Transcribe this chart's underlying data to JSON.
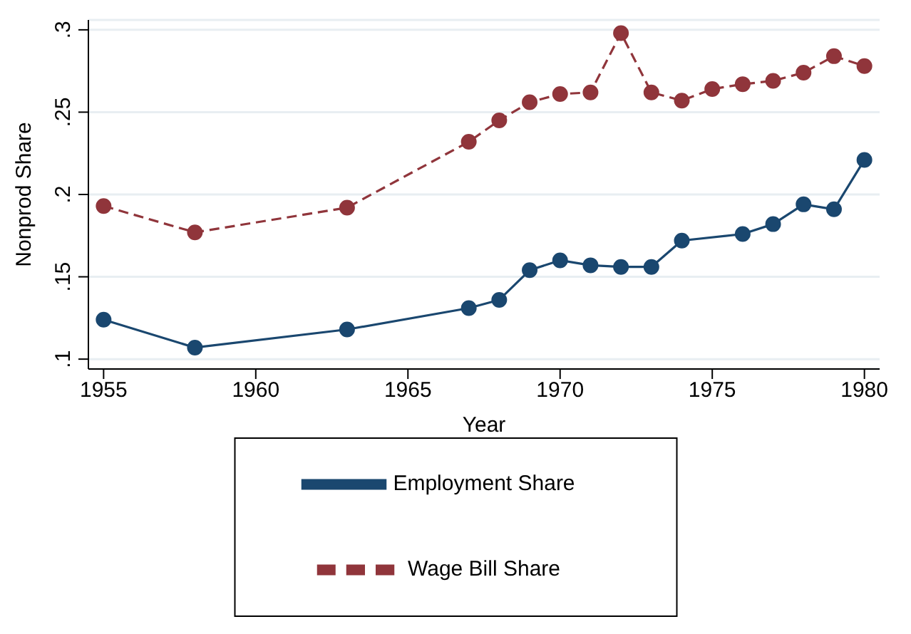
{
  "chart_data": {
    "type": "line",
    "xlabel": "Year",
    "ylabel": "Nonprod Share",
    "xlim": [
      1954.5,
      1980.5
    ],
    "xticks": [
      1955,
      1960,
      1965,
      1970,
      1975,
      1980
    ],
    "ylim": [
      0.094,
      0.306
    ],
    "yticks": [
      {
        "value": 0.1,
        "label": ".1"
      },
      {
        "value": 0.15,
        "label": ".15"
      },
      {
        "value": 0.2,
        "label": ".2"
      },
      {
        "value": 0.25,
        "label": ".25"
      },
      {
        "value": 0.3,
        "label": ".3"
      }
    ],
    "grid": "y",
    "legend": "bottom",
    "marker": "circle",
    "series": [
      {
        "name": "Employment Share",
        "color": "#1a476f",
        "line_style": "solid",
        "x": [
          1955,
          1958,
          1963,
          1967,
          1968,
          1969,
          1970,
          1971,
          1972,
          1973,
          1974,
          1976,
          1977,
          1978,
          1979,
          1980
        ],
        "values": [
          0.124,
          0.107,
          0.118,
          0.131,
          0.136,
          0.154,
          0.16,
          0.157,
          0.156,
          0.156,
          0.172,
          0.176,
          0.182,
          0.194,
          0.191,
          0.221
        ]
      },
      {
        "name": "Wage Bill Share",
        "color": "#90353b",
        "line_style": "dashed",
        "x": [
          1955,
          1958,
          1963,
          1967,
          1968,
          1969,
          1970,
          1971,
          1972,
          1973,
          1974,
          1975,
          1976,
          1977,
          1978,
          1979,
          1980
        ],
        "values": [
          0.193,
          0.177,
          0.192,
          0.232,
          0.245,
          0.256,
          0.261,
          0.262,
          0.298,
          0.262,
          0.257,
          0.264,
          0.267,
          0.269,
          0.274,
          0.284,
          0.278
        ]
      }
    ]
  }
}
